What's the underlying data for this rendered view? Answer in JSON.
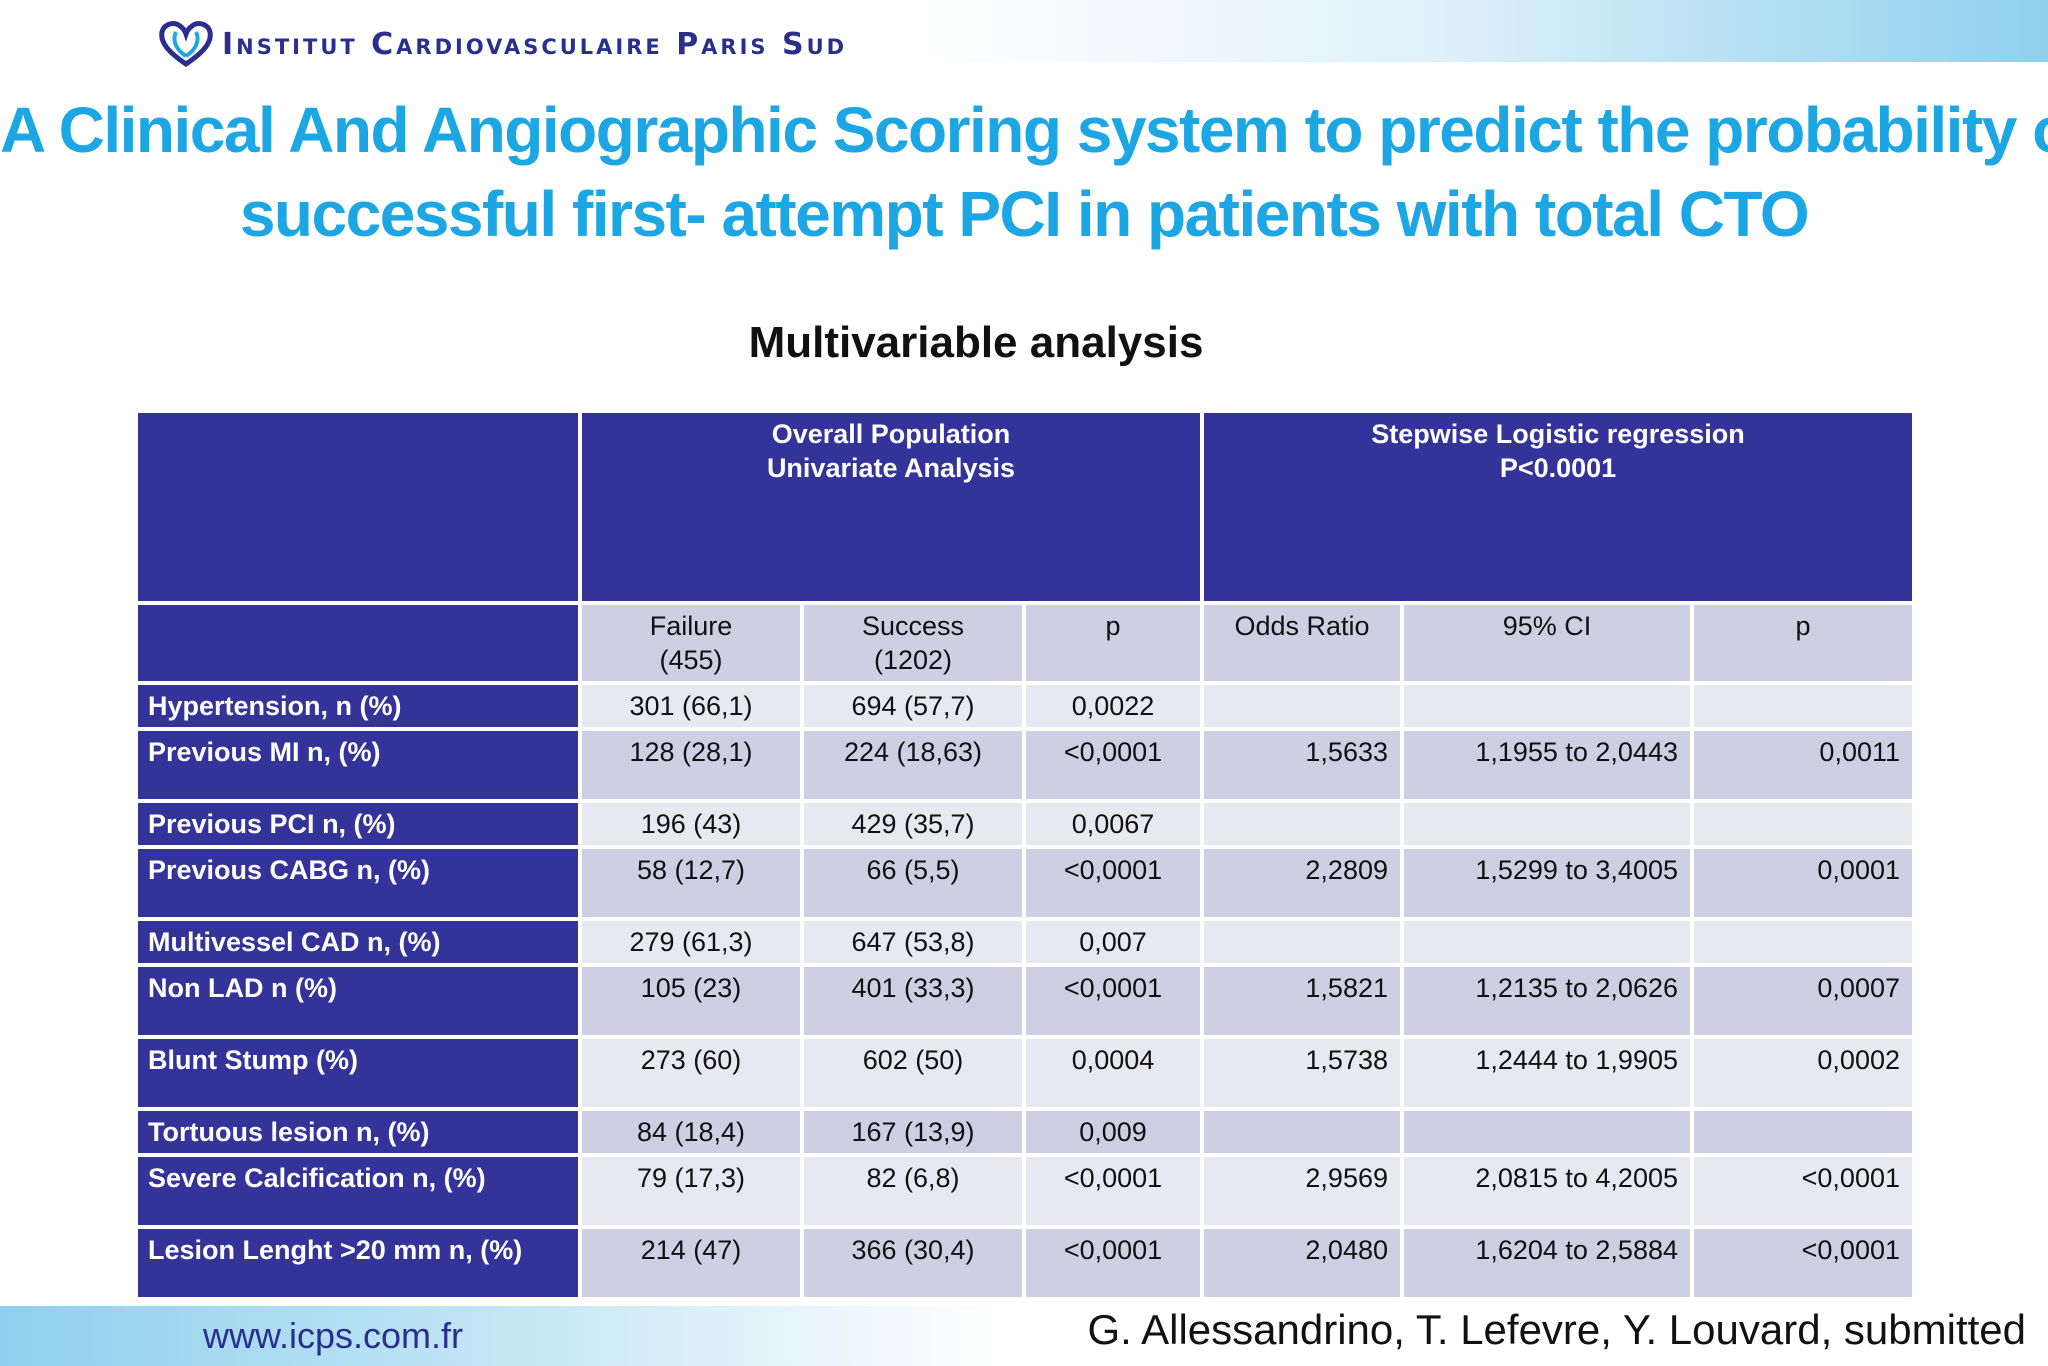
{
  "header": {
    "logo_text": "Institut Cardiovasculaire Paris Sud"
  },
  "title": {
    "line1": "A Clinical And Angiographic Scoring system to predict the probability of",
    "line2": "successful first- attempt PCI in patients with total CTO"
  },
  "subtitle": "Multivariable analysis",
  "table": {
    "group1_line1": "Overall Population",
    "group1_line2": "Univariate Analysis",
    "group2_line1": "Stepwise Logistic regression",
    "group2_line2": "P<0.0001",
    "columns": {
      "failure_line1": "Failure",
      "failure_line2": "(455)",
      "success_line1": "Success",
      "success_line2": "(1202)",
      "p1": "p",
      "odds_ratio": "Odds Ratio",
      "ci": "95% CI",
      "p2": "p"
    },
    "rows": [
      {
        "label": "Hypertension, n (%)",
        "failure": "301 (66,1)",
        "success": "694 (57,7)",
        "p": "0,0022",
        "or": "",
        "ci": "",
        "p2": ""
      },
      {
        "label": "Previous MI n, (%)",
        "failure": "128 (28,1)",
        "success": "224 (18,63)",
        "p": "<0,0001",
        "or": "1,5633",
        "ci": "1,1955 to 2,0443",
        "p2": "0,0011"
      },
      {
        "label": "Previous PCI n, (%)",
        "failure": "196 (43)",
        "success": "429 (35,7)",
        "p": "0,0067",
        "or": "",
        "ci": "",
        "p2": ""
      },
      {
        "label": "Previous CABG n, (%)",
        "failure": "58 (12,7)",
        "success": "66 (5,5)",
        "p": "<0,0001",
        "or": "2,2809",
        "ci": "1,5299 to 3,4005",
        "p2": "0,0001"
      },
      {
        "label": "Multivessel CAD n, (%)",
        "failure": "279 (61,3)",
        "success": "647 (53,8)",
        "p": "0,007",
        "or": "",
        "ci": "",
        "p2": ""
      },
      {
        "label": "Non LAD n (%)",
        "failure": "105 (23)",
        "success": "401 (33,3)",
        "p": "<0,0001",
        "or": "1,5821",
        "ci": "1,2135 to 2,0626",
        "p2": "0,0007"
      },
      {
        "label": "Blunt Stump (%)",
        "failure": "273 (60)",
        "success": "602 (50)",
        "p": "0,0004",
        "or": "1,5738",
        "ci": "1,2444 to 1,9905",
        "p2": "0,0002"
      },
      {
        "label": "Tortuous lesion n, (%)",
        "failure": "84 (18,4)",
        "success": "167 (13,9)",
        "p": "0,009",
        "or": "",
        "ci": "",
        "p2": ""
      },
      {
        "label": "Severe Calcification n, (%)",
        "failure": "79 (17,3)",
        "success": "82 (6,8)",
        "p": "<0,0001",
        "or": "2,9569",
        "ci": "2,0815 to 4,2005",
        "p2": "<0,0001"
      },
      {
        "label": "Lesion Lenght >20 mm n, (%)",
        "failure": "214 (47)",
        "success": "366 (30,4)",
        "p": "<0,0001",
        "or": "2,0480",
        "ci": "1,6204 to 2,5884",
        "p2": "<0,0001"
      }
    ]
  },
  "footer": {
    "url": "www.icps.com.fr",
    "citation": "G. Allessandrino, T. Lefevre, Y. Louvard, submitted"
  },
  "colors": {
    "title": "#1ca6e3",
    "header_bg": "#333399",
    "cell_light": "#e8e8f0",
    "cell_dark": "#cfcfe3"
  }
}
